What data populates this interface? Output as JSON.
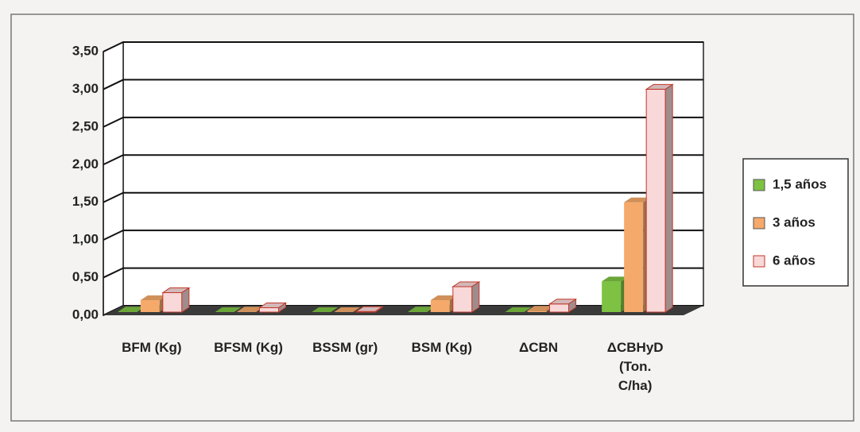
{
  "chart_data": {
    "type": "bar3d",
    "categories": [
      "BFM (Kg)",
      "BFSM (Kg)",
      "BSSM (gr)",
      "BSM (Kg)",
      "ΔCBN",
      "ΔCBHyD (Ton. C/ha)"
    ],
    "series": [
      {
        "name": "1,5 años",
        "color": "#7dc242",
        "values": [
          0.05,
          0.02,
          0.01,
          0.05,
          0.02,
          0.45
        ]
      },
      {
        "name": "3 años",
        "color": "#f5a96a",
        "values": [
          0.2,
          0.05,
          0.02,
          0.2,
          0.06,
          1.5
        ]
      },
      {
        "name": "6 años",
        "color": "#f8d8d8",
        "values": [
          0.3,
          0.1,
          0.05,
          0.38,
          0.15,
          3.0
        ]
      }
    ],
    "ylim": [
      0,
      3.5
    ],
    "yticks": [
      {
        "value": 0,
        "label": "0,00"
      },
      {
        "value": 0.5,
        "label": "0,50"
      },
      {
        "value": 1,
        "label": "1,00"
      },
      {
        "value": 1.5,
        "label": "1,50"
      },
      {
        "value": 2,
        "label": "2,00"
      },
      {
        "value": 2.5,
        "label": "2,50"
      },
      {
        "value": 3,
        "label": "3,00"
      },
      {
        "value": 3.5,
        "label": "3,50"
      }
    ],
    "grid": true,
    "legend": "right"
  }
}
